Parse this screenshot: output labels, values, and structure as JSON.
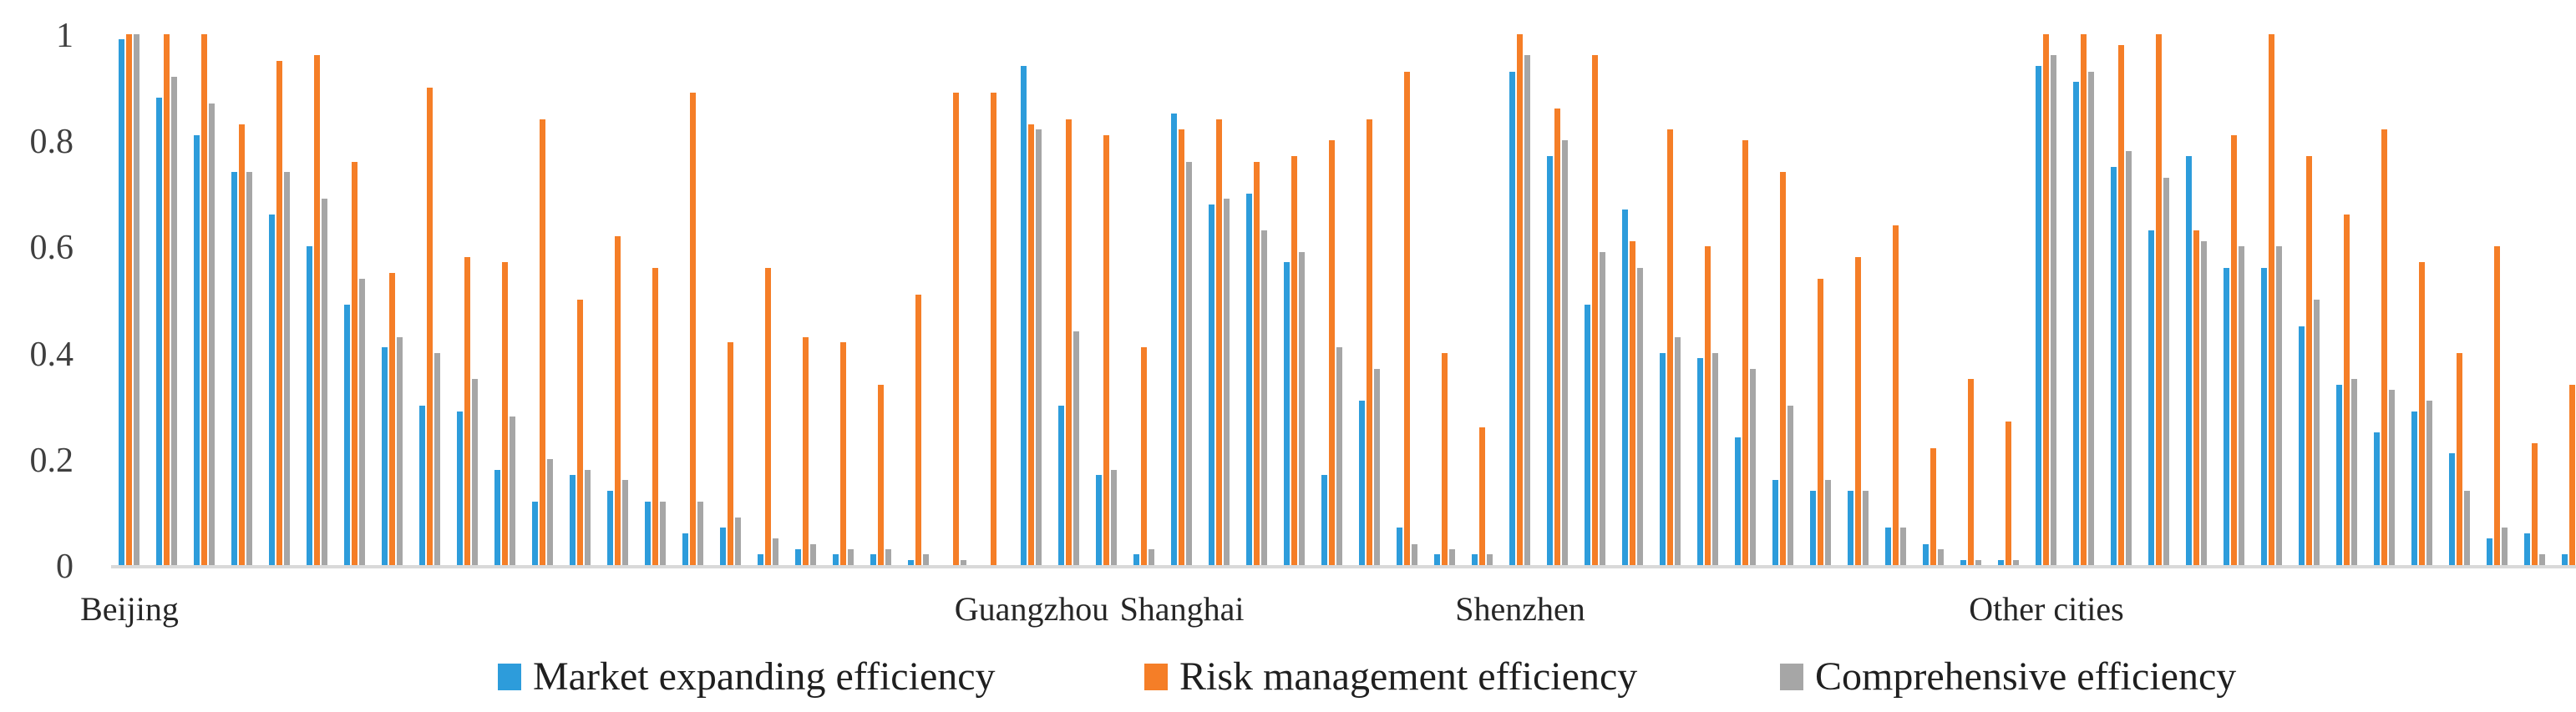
{
  "chart_data": {
    "type": "bar",
    "title": "",
    "xlabel": "",
    "ylabel": "",
    "ylim": [
      0,
      1
    ],
    "grid": false,
    "legend_position": "bottom-center",
    "y_ticks": [
      {
        "label": "1",
        "value": 1.0
      },
      {
        "label": "0.8",
        "value": 0.8
      },
      {
        "label": "0.6",
        "value": 0.6
      },
      {
        "label": "0.4",
        "value": 0.4
      },
      {
        "label": "0.2",
        "value": 0.2
      },
      {
        "label": "0",
        "value": 0.0
      }
    ],
    "series": [
      {
        "name": "Market expanding efficiency",
        "color": "#2d9cdb"
      },
      {
        "name": "Risk management efficiency",
        "color": "#f57e27"
      },
      {
        "name": "Comprehensive efficiency",
        "color": "#a6a6a6"
      }
    ],
    "cities": [
      {
        "name": "Beijing",
        "groups": [
          [
            0.99,
            1.0,
            1.0
          ],
          [
            0.88,
            1.0,
            0.92
          ],
          [
            0.81,
            1.0,
            0.87
          ],
          [
            0.74,
            0.83,
            0.74
          ],
          [
            0.66,
            0.95,
            0.74
          ],
          [
            0.6,
            0.96,
            0.69
          ],
          [
            0.49,
            0.76,
            0.54
          ],
          [
            0.41,
            0.55,
            0.43
          ],
          [
            0.3,
            0.9,
            0.4
          ],
          [
            0.29,
            0.58,
            0.35
          ],
          [
            0.18,
            0.57,
            0.28
          ],
          [
            0.12,
            0.84,
            0.2
          ],
          [
            0.17,
            0.5,
            0.18
          ],
          [
            0.14,
            0.62,
            0.16
          ],
          [
            0.12,
            0.56,
            0.12
          ],
          [
            0.06,
            0.89,
            0.12
          ],
          [
            0.07,
            0.42,
            0.09
          ],
          [
            0.02,
            0.56,
            0.05
          ],
          [
            0.03,
            0.43,
            0.04
          ],
          [
            0.02,
            0.42,
            0.03
          ],
          [
            0.02,
            0.34,
            0.03
          ],
          [
            0.01,
            0.51,
            0.02
          ],
          [
            0.0,
            0.89,
            0.01
          ],
          [
            0.0,
            0.89,
            0.0
          ]
        ]
      },
      {
        "name": "Guangzhou",
        "groups": [
          [
            0.94,
            0.83,
            0.82
          ],
          [
            0.3,
            0.84,
            0.44
          ],
          [
            0.17,
            0.81,
            0.18
          ],
          [
            0.02,
            0.41,
            0.03
          ]
        ]
      },
      {
        "name": "Shanghai",
        "groups": [
          [
            0.85,
            0.82,
            0.76
          ],
          [
            0.68,
            0.84,
            0.69
          ],
          [
            0.7,
            0.76,
            0.63
          ],
          [
            0.57,
            0.77,
            0.59
          ],
          [
            0.17,
            0.8,
            0.41
          ],
          [
            0.31,
            0.84,
            0.37
          ],
          [
            0.07,
            0.93,
            0.04
          ],
          [
            0.02,
            0.4,
            0.03
          ],
          [
            0.02,
            0.26,
            0.02
          ]
        ]
      },
      {
        "name": "Shenzhen",
        "groups": [
          [
            0.93,
            1.0,
            0.96
          ],
          [
            0.77,
            0.86,
            0.8
          ],
          [
            0.49,
            0.96,
            0.59
          ],
          [
            0.67,
            0.61,
            0.56
          ],
          [
            0.4,
            0.82,
            0.43
          ],
          [
            0.39,
            0.6,
            0.4
          ],
          [
            0.24,
            0.8,
            0.37
          ],
          [
            0.16,
            0.74,
            0.3
          ],
          [
            0.14,
            0.54,
            0.16
          ],
          [
            0.14,
            0.58,
            0.14
          ],
          [
            0.07,
            0.64,
            0.07
          ],
          [
            0.04,
            0.22,
            0.03
          ],
          [
            0.01,
            0.35,
            0.01
          ],
          [
            0.01,
            0.27,
            0.01
          ]
        ]
      },
      {
        "name": "Other cities",
        "groups": [
          [
            0.94,
            1.0,
            0.96
          ],
          [
            0.91,
            1.0,
            0.93
          ],
          [
            0.75,
            0.98,
            0.78
          ],
          [
            0.63,
            1.0,
            0.73
          ],
          [
            0.77,
            0.63,
            0.61
          ],
          [
            0.56,
            0.81,
            0.6
          ],
          [
            0.56,
            1.0,
            0.6
          ],
          [
            0.45,
            0.77,
            0.5
          ],
          [
            0.34,
            0.66,
            0.35
          ],
          [
            0.25,
            0.82,
            0.33
          ],
          [
            0.29,
            0.57,
            0.31
          ],
          [
            0.21,
            0.4,
            0.14
          ],
          [
            0.05,
            0.6,
            0.07
          ],
          [
            0.06,
            0.23,
            0.02
          ],
          [
            0.02,
            0.34,
            0.02
          ]
        ]
      }
    ],
    "colors": {
      "axis_line": "#d9d9d9",
      "tick_text": "#3f3f3f",
      "label_text": "#262626",
      "legend_text": "#1f1f1f",
      "background": "#ffffff"
    }
  }
}
